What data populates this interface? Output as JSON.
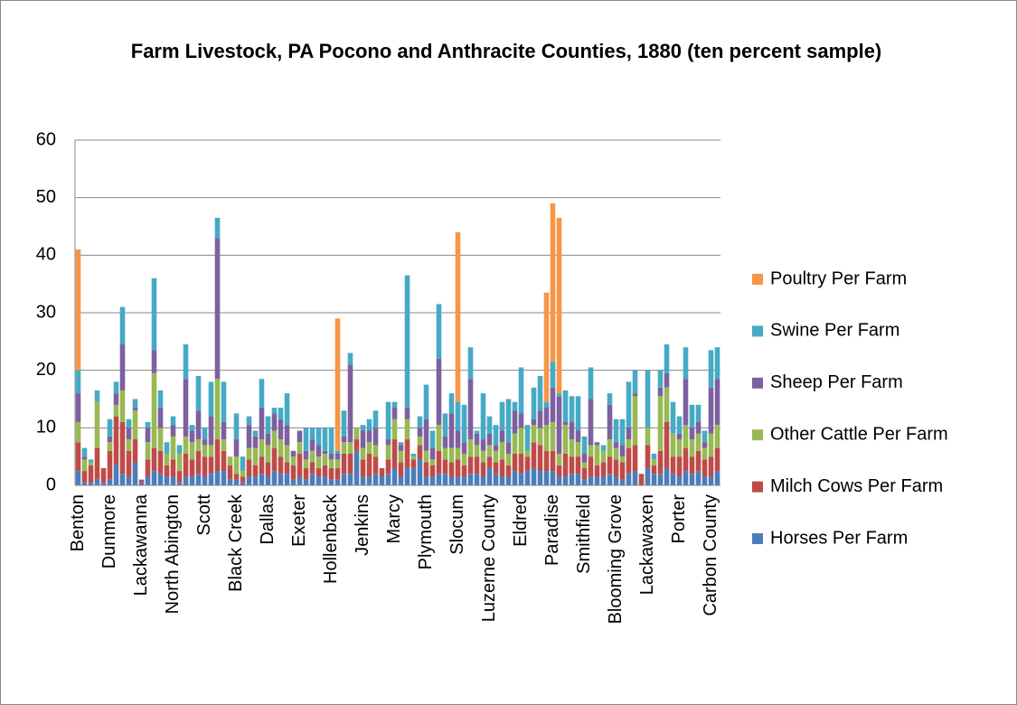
{
  "chart_data": {
    "type": "stacked_bar",
    "title": "Farm Livestock, PA Pocono and Anthracite Counties, 1880 (ten percent sample)",
    "categories": [
      "Benton",
      null,
      null,
      null,
      null,
      "Dunmore",
      null,
      null,
      null,
      null,
      "Lackawanna",
      null,
      null,
      null,
      null,
      "North Abington",
      null,
      null,
      null,
      null,
      "Scott",
      null,
      null,
      null,
      null,
      "Black Creek",
      null,
      null,
      null,
      null,
      "Dallas",
      null,
      null,
      null,
      null,
      "Exeter",
      null,
      null,
      null,
      null,
      "Hollenback",
      null,
      null,
      null,
      null,
      "Jenkins",
      null,
      null,
      null,
      null,
      "Marcy",
      null,
      null,
      null,
      null,
      "Plymouth",
      null,
      null,
      null,
      null,
      "Slocum",
      null,
      null,
      null,
      null,
      "Luzerne County",
      null,
      null,
      null,
      null,
      "Eldred",
      null,
      null,
      null,
      null,
      "Paradise",
      null,
      null,
      null,
      null,
      "Smithfield",
      null,
      null,
      null,
      null,
      "Blooming Grove",
      null,
      null,
      null,
      null,
      "Lackawaxen",
      null,
      null,
      null,
      null,
      "Porter",
      null,
      null,
      null,
      null,
      "Carbon County",
      null
    ],
    "series": [
      {
        "name": "Horses Per Farm",
        "color": "#4a7ebb",
        "values": [
          2.5,
          0.5,
          0.5,
          1,
          0.5,
          1,
          3.5,
          2,
          1.5,
          4,
          0.5,
          1.5,
          2.5,
          2,
          1.5,
          1.5,
          0.5,
          1.5,
          1.5,
          2,
          1.5,
          2,
          2.5,
          2.5,
          1,
          1,
          0.5,
          1.5,
          1.5,
          2,
          1.5,
          2.5,
          2,
          2,
          1,
          1.5,
          1,
          2,
          1.5,
          1.5,
          1,
          1,
          2,
          2,
          6,
          1.5,
          1.5,
          2,
          1.5,
          2,
          3,
          1.5,
          3,
          3,
          4.5,
          1.5,
          1.5,
          2,
          2,
          1.5,
          1.5,
          1.5,
          2,
          2,
          1.5,
          3,
          2,
          1.5,
          1.5,
          2.5,
          2,
          2.5,
          3,
          2.5,
          2.5,
          2.5,
          1.5,
          1.5,
          2,
          2,
          1,
          1.5,
          1.5,
          1.5,
          2,
          1.5,
          1,
          2,
          2.5,
          0,
          3,
          2,
          2,
          3,
          2,
          1.5,
          2.5,
          2,
          2.5,
          1.5,
          1.5,
          2.5
        ]
      },
      {
        "name": "Milch Cows Per Farm",
        "color": "#be4b48",
        "values": [
          5,
          2,
          3,
          5.5,
          2.5,
          5,
          8.5,
          9,
          4.5,
          4,
          0.5,
          3,
          4,
          4,
          2,
          3,
          2,
          4,
          3,
          4,
          3.5,
          3,
          5.5,
          3.5,
          2.5,
          1,
          1,
          3,
          2,
          3,
          2.5,
          4,
          3,
          2,
          2.5,
          4,
          2,
          2,
          1.5,
          2,
          2,
          2,
          3.5,
          3.5,
          2,
          3,
          4,
          3,
          1.5,
          2.5,
          5,
          2.5,
          5,
          1.5,
          2.5,
          2.5,
          2,
          4,
          2.5,
          2.5,
          3,
          2,
          3,
          3,
          2.5,
          2,
          2,
          3,
          2,
          3,
          3.5,
          2.5,
          4.5,
          4.5,
          3.5,
          3.5,
          2,
          4,
          3,
          3,
          2,
          3.5,
          2,
          2.5,
          3,
          3,
          3,
          4.5,
          4.5,
          2,
          4,
          1.5,
          4,
          8,
          3,
          3.5,
          4,
          3,
          3.5,
          3,
          3.5,
          4
        ]
      },
      {
        "name": "Other Cattle Per Farm",
        "color": "#98b954",
        "values": [
          3.5,
          2,
          0.5,
          8,
          0,
          1.5,
          2,
          5.5,
          2,
          5,
          0,
          3,
          13,
          4,
          2,
          4,
          3,
          3,
          3,
          2,
          2,
          2,
          10.5,
          2,
          1.5,
          3,
          1,
          2,
          3,
          3,
          3,
          3,
          3,
          3,
          1.5,
          2,
          1.5,
          2,
          2,
          2,
          1.5,
          1.5,
          2,
          2,
          2,
          2,
          2,
          2,
          0,
          2.5,
          3.5,
          2,
          3.5,
          0.5,
          1.5,
          2,
          1,
          4.5,
          2,
          2.5,
          2,
          2,
          3,
          2,
          2,
          2,
          2,
          3,
          2,
          3.5,
          4.5,
          1,
          3,
          3,
          4.5,
          5,
          2,
          5,
          3,
          2.5,
          1,
          2,
          3.5,
          2,
          3,
          2,
          1,
          1.5,
          8.5,
          0,
          3,
          1,
          9.5,
          6,
          4,
          3,
          4,
          3,
          3,
          2,
          4,
          4
        ]
      },
      {
        "name": "Sheep Per Farm",
        "color": "#7d60a0",
        "values": [
          5,
          0.5,
          0,
          0,
          0,
          1,
          2,
          8,
          2,
          0.5,
          0,
          2.5,
          4,
          3.5,
          0,
          2,
          0,
          10,
          2,
          5,
          1,
          5,
          24.5,
          3,
          0,
          3,
          0,
          4,
          2,
          5.5,
          2,
          3,
          3.5,
          3.5,
          1,
          2,
          1.5,
          2,
          2,
          0.5,
          1,
          1,
          1,
          13.5,
          0,
          3,
          2,
          3,
          0,
          1,
          2,
          1,
          2,
          0,
          1.5,
          5.5,
          2,
          11.5,
          2,
          6,
          3,
          2,
          10.5,
          2,
          2,
          2,
          1,
          2,
          2,
          4,
          2.5,
          0,
          1,
          3,
          3,
          6,
          10,
          0.5,
          3,
          2,
          1.5,
          8,
          0.5,
          0,
          6,
          1,
          2,
          2,
          0.5,
          0,
          0,
          0,
          1.5,
          2.5,
          0,
          1,
          8,
          2,
          2,
          1,
          8,
          8
        ]
      },
      {
        "name": "Swine Per Farm",
        "color": "#46aac5",
        "values": [
          4,
          1.5,
          0.5,
          2,
          0,
          3,
          2,
          6.5,
          1.5,
          1.5,
          0,
          1,
          12.5,
          3,
          2,
          1.5,
          1.5,
          6,
          1,
          6,
          2,
          6,
          3.5,
          7,
          0,
          4.5,
          2.5,
          1.5,
          1,
          5,
          3,
          1,
          2,
          5.5,
          0,
          0,
          4,
          2,
          3,
          4,
          4.5,
          0.5,
          4.5,
          2,
          0,
          1,
          2,
          3,
          0,
          6.5,
          1,
          0.5,
          23,
          0.5,
          2,
          6,
          3,
          9.5,
          4,
          3.5,
          5,
          6.5,
          5.5,
          0.5,
          8,
          3,
          3.5,
          5,
          7.5,
          1.5,
          8,
          4.5,
          5.5,
          6,
          1,
          4.5,
          0.5,
          5.5,
          4.5,
          6,
          3,
          5.5,
          0,
          1,
          2,
          4,
          4.5,
          8,
          4,
          0,
          10,
          1,
          3,
          5,
          5.5,
          3,
          5.5,
          4,
          3,
          2,
          6.5,
          5.5
        ]
      },
      {
        "name": "Poultry Per Farm",
        "color": "#f79646",
        "values": [
          21,
          0,
          0,
          0,
          0,
          0,
          0,
          0,
          0,
          0,
          0,
          0,
          0,
          0,
          0,
          0,
          0,
          0,
          0,
          0,
          0,
          0,
          0,
          0,
          0,
          0,
          0,
          0,
          0,
          0,
          0,
          0,
          0,
          0,
          0,
          0,
          0,
          0,
          0,
          0,
          0,
          23,
          0,
          0,
          0,
          0,
          0,
          0,
          0,
          0,
          0,
          0,
          0,
          0,
          0,
          0,
          0,
          0,
          0,
          0,
          29.5,
          0,
          0,
          0,
          0,
          0,
          0,
          0,
          0,
          0,
          0,
          0,
          0,
          0,
          19,
          27.5,
          30.5,
          0,
          0,
          0,
          0,
          0,
          0,
          0,
          0,
          0,
          0,
          0,
          0,
          0,
          0,
          0,
          0,
          0,
          0,
          0,
          0,
          0,
          0,
          0,
          0,
          0
        ]
      }
    ],
    "ylim": [
      0,
      60
    ],
    "yticks": [
      0,
      10,
      20,
      30,
      40,
      50,
      60
    ],
    "grid": true,
    "legend": "right"
  }
}
